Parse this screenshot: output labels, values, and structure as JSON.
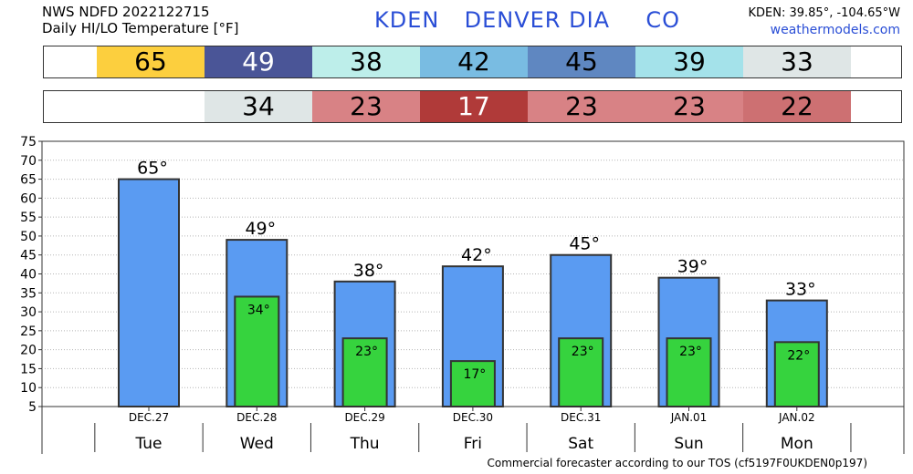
{
  "header": {
    "line1": "NWS NDFD 2022122715",
    "line2": "Daily HI/LO Temperature [°F]",
    "station_id": "KDEN",
    "station_name": "DENVER DIA",
    "state": "CO",
    "coords": "KDEN: 39.85°, -104.65°W",
    "site": "weathermodels.com"
  },
  "high_strip": [
    {
      "text": "65",
      "bg": "#fccf3e",
      "color": "#000000"
    },
    {
      "text": "49",
      "bg": "#4a5597",
      "color": "#ffffff"
    },
    {
      "text": "38",
      "bg": "#bdeeea",
      "color": "#000000"
    },
    {
      "text": "42",
      "bg": "#79bce2",
      "color": "#000000"
    },
    {
      "text": "45",
      "bg": "#5f87c1",
      "color": "#000000"
    },
    {
      "text": "39",
      "bg": "#a4e2ea",
      "color": "#000000"
    },
    {
      "text": "33",
      "bg": "#dfe6e6",
      "color": "#000000"
    }
  ],
  "low_strip": [
    {
      "text": "",
      "bg": "#ffffff",
      "color": "#000000"
    },
    {
      "text": "34",
      "bg": "#dfe6e6",
      "color": "#000000"
    },
    {
      "text": "23",
      "bg": "#d88285",
      "color": "#000000"
    },
    {
      "text": "17",
      "bg": "#b03a39",
      "color": "#ffffff"
    },
    {
      "text": "23",
      "bg": "#d88285",
      "color": "#000000"
    },
    {
      "text": "23",
      "bg": "#d88285",
      "color": "#000000"
    },
    {
      "text": "22",
      "bg": "#cd7072",
      "color": "#000000"
    }
  ],
  "footer": "Commercial forecaster according to our TOS (cf5197F0UKDEN0p197)",
  "colors": {
    "high_bar": "#5a9bf2",
    "low_bar": "#36d33e",
    "bar_stroke": "#333333"
  },
  "chart_data": {
    "type": "bar",
    "categories": [
      "DEC.27",
      "DEC.28",
      "DEC.29",
      "DEC.30",
      "DEC.31",
      "JAN.01",
      "JAN.02"
    ],
    "days": [
      "Tue",
      "Wed",
      "Thu",
      "Fri",
      "Sat",
      "Sun",
      "Mon"
    ],
    "series": [
      {
        "values": [
          65,
          49,
          38,
          42,
          45,
          39,
          33
        ],
        "labels": [
          "65°",
          "49°",
          "38°",
          "42°",
          "45°",
          "39°",
          "33°"
        ]
      },
      {
        "values": [
          null,
          34,
          23,
          17,
          23,
          23,
          22
        ],
        "labels": [
          "",
          "34°",
          "23°",
          "17°",
          "23°",
          "23°",
          "22°"
        ]
      }
    ],
    "yticks": [
      5,
      10,
      15,
      20,
      25,
      30,
      35,
      40,
      45,
      50,
      55,
      60,
      65,
      70,
      75
    ],
    "ylim": [
      5,
      75
    ],
    "grid": true
  }
}
